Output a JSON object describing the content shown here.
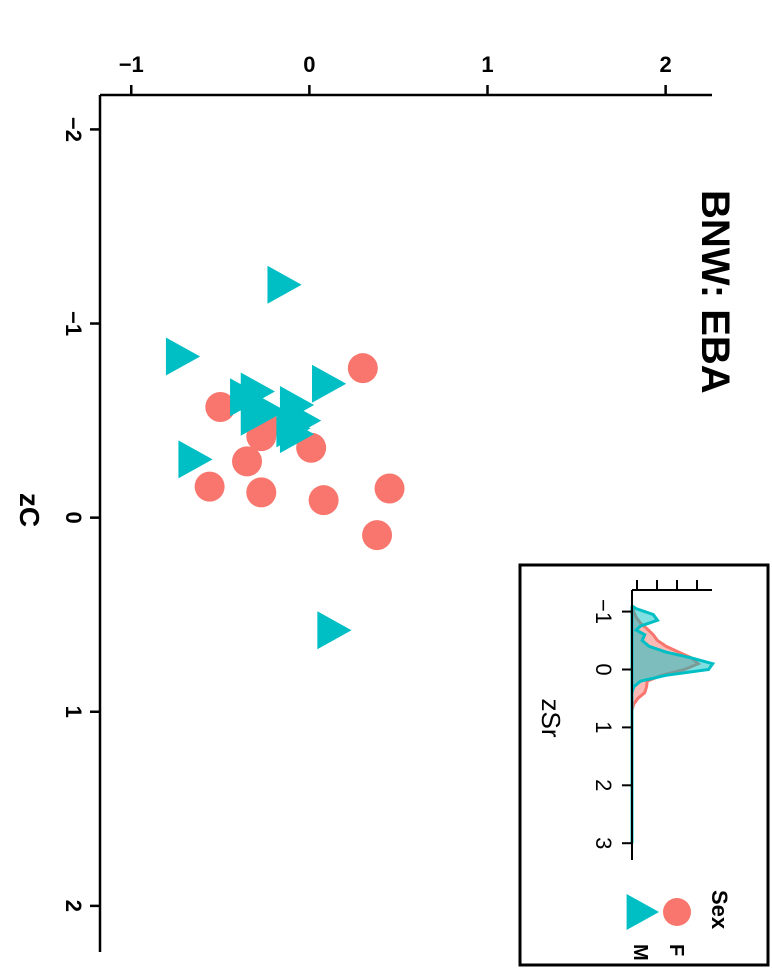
{
  "chart_data": {
    "type": "scatter",
    "title": "BNW: EBA",
    "xlabel": "zC",
    "ylabel": "",
    "xlim": [
      -2.1,
      2.15
    ],
    "ylim": [
      -1.08,
      2.12
    ],
    "x_ticks": [
      -2,
      -1,
      0,
      1,
      2
    ],
    "x_tick_labels": [
      "−2",
      "−1",
      "0",
      "1",
      "2"
    ],
    "y_ticks": [
      -1,
      0,
      1,
      2
    ],
    "y_tick_labels": [
      "−1",
      "0",
      "1",
      "2"
    ],
    "grid": false,
    "series": [
      {
        "name": "F",
        "marker": "circle",
        "color": "#F8766D",
        "points": [
          {
            "x": -0.77,
            "y": 0.3
          },
          {
            "x": -0.57,
            "y": -0.5
          },
          {
            "x": -0.47,
            "y": -0.25
          },
          {
            "x": -0.42,
            "y": -0.27
          },
          {
            "x": -0.36,
            "y": 0.01
          },
          {
            "x": -0.29,
            "y": -0.35
          },
          {
            "x": -0.16,
            "y": -0.56
          },
          {
            "x": -0.15,
            "y": 0.45
          },
          {
            "x": -0.13,
            "y": -0.27
          },
          {
            "x": -0.09,
            "y": 0.08
          },
          {
            "x": 0.09,
            "y": 0.38
          }
        ]
      },
      {
        "name": "M",
        "marker": "triangle",
        "color": "#00BFC4",
        "points": [
          {
            "x": -1.2,
            "y": -0.15
          },
          {
            "x": -0.83,
            "y": -0.72
          },
          {
            "x": -0.69,
            "y": 0.1
          },
          {
            "x": -0.65,
            "y": -0.3
          },
          {
            "x": -0.62,
            "y": -0.36
          },
          {
            "x": -0.58,
            "y": -0.08
          },
          {
            "x": -0.55,
            "y": -0.24
          },
          {
            "x": -0.52,
            "y": -0.3
          },
          {
            "x": -0.5,
            "y": -0.04
          },
          {
            "x": -0.46,
            "y": -0.1
          },
          {
            "x": -0.43,
            "y": -0.08
          },
          {
            "x": -0.3,
            "y": -0.65
          },
          {
            "x": 0.58,
            "y": 0.13
          }
        ]
      }
    ],
    "legend": {
      "title": "Sex",
      "placement": "top-right",
      "entries": [
        {
          "label": "F",
          "marker": "circle",
          "color": "#F8766D"
        },
        {
          "label": "M",
          "marker": "triangle",
          "color": "#00BFC4"
        }
      ]
    },
    "inset": {
      "type": "area",
      "xlabel": "zSr",
      "xlim": [
        -1.2,
        3.1
      ],
      "x_ticks": [
        -1,
        0,
        1,
        2,
        3
      ],
      "x_tick_labels": [
        "−1",
        "0",
        "1",
        "2",
        "3"
      ],
      "series": [
        {
          "name": "F",
          "color": "#F8766D",
          "points": [
            [
              -1.1,
              0.0
            ],
            [
              -1.0,
              0.02
            ],
            [
              -0.9,
              0.05
            ],
            [
              -0.8,
              0.1
            ],
            [
              -0.7,
              0.18
            ],
            [
              -0.6,
              0.25
            ],
            [
              -0.5,
              0.3
            ],
            [
              -0.4,
              0.4
            ],
            [
              -0.3,
              0.55
            ],
            [
              -0.2,
              0.7
            ],
            [
              -0.1,
              0.78
            ],
            [
              0.0,
              0.62
            ],
            [
              0.1,
              0.35
            ],
            [
              0.2,
              0.18
            ],
            [
              0.3,
              0.17
            ],
            [
              0.4,
              0.15
            ],
            [
              0.5,
              0.07
            ],
            [
              0.6,
              0.02
            ],
            [
              0.7,
              0.0
            ],
            [
              3.0,
              0.0
            ]
          ]
        },
        {
          "name": "M",
          "color": "#00BFC4",
          "points": [
            [
              -1.1,
              0.0
            ],
            [
              -1.05,
              0.05
            ],
            [
              -0.95,
              0.25
            ],
            [
              -0.85,
              0.3
            ],
            [
              -0.75,
              0.1
            ],
            [
              -0.68,
              0.05
            ],
            [
              -0.6,
              0.15
            ],
            [
              -0.5,
              0.12
            ],
            [
              -0.4,
              0.2
            ],
            [
              -0.3,
              0.4
            ],
            [
              -0.2,
              0.7
            ],
            [
              -0.1,
              0.95
            ],
            [
              0.0,
              0.9
            ],
            [
              0.1,
              0.4
            ],
            [
              0.2,
              0.1
            ],
            [
              0.3,
              0.02
            ],
            [
              0.4,
              0.0
            ],
            [
              3.0,
              0.0
            ]
          ]
        }
      ]
    }
  }
}
